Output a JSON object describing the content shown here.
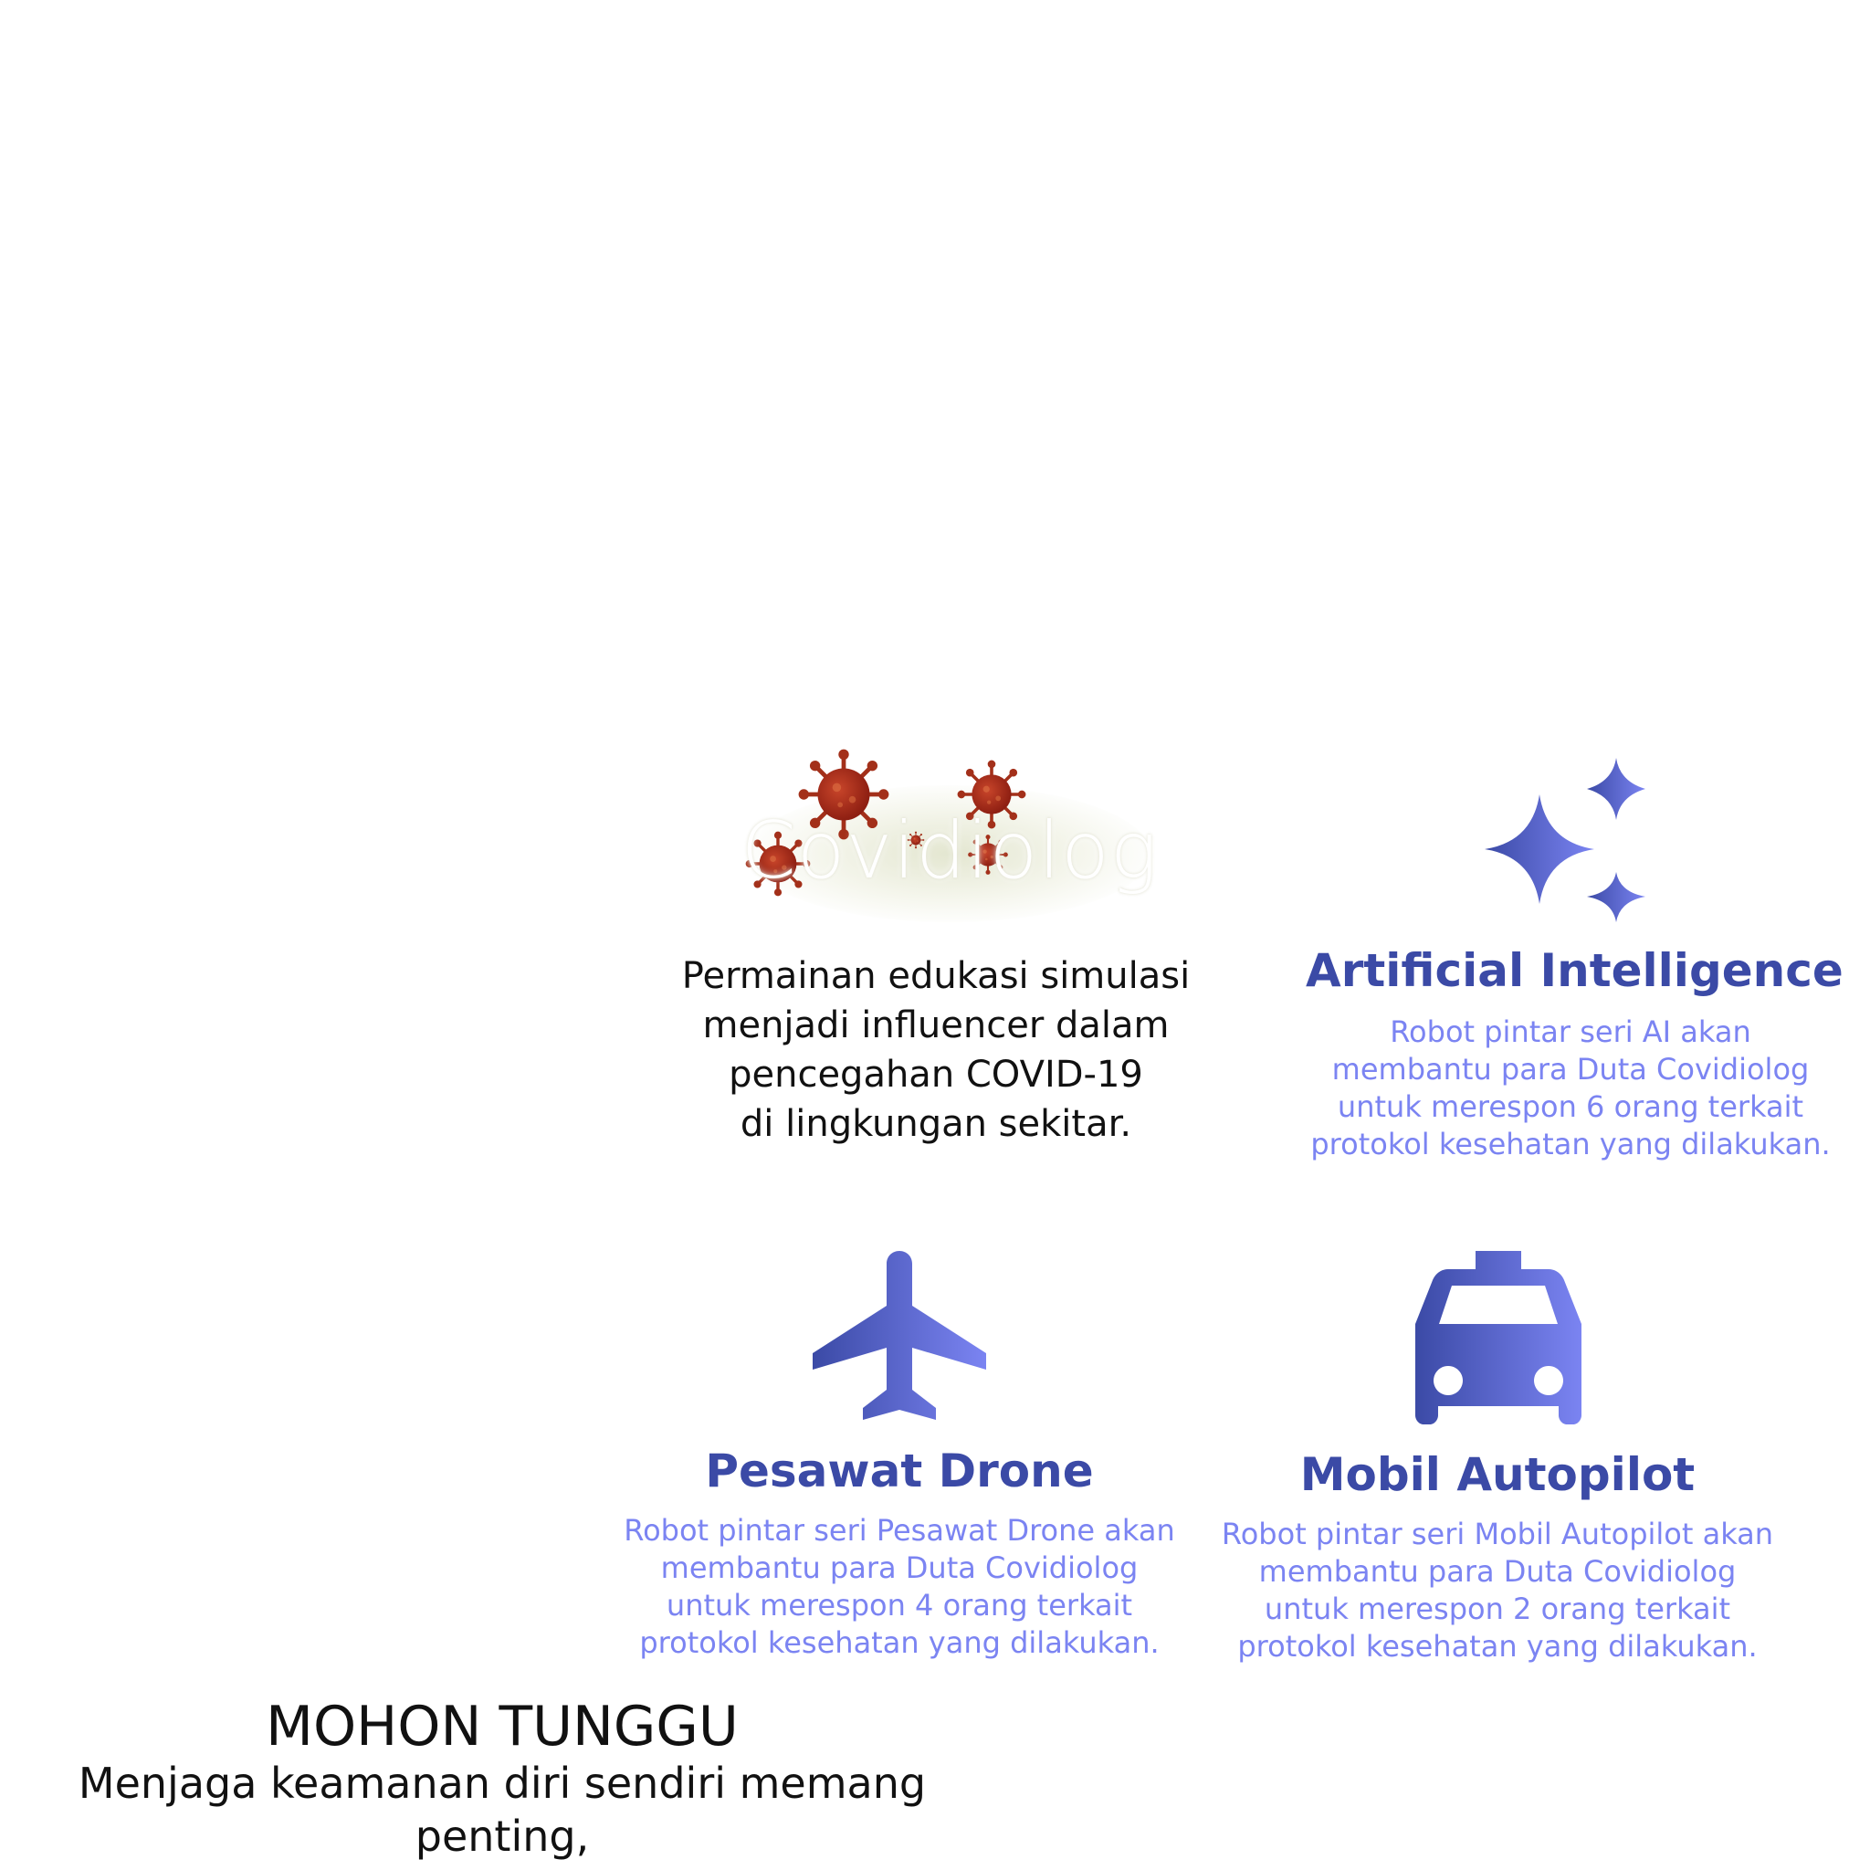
{
  "logo": {
    "text": "Covidiolog",
    "icon": "virus-icon",
    "color": "#b23a1c"
  },
  "tagline": "Permainan edukasi simulasi\nmenjadi influencer dalam\npencegahan COVID-19\ndi lingkungan sekitar.",
  "features": {
    "ai": {
      "icon": "sparkles-icon",
      "title": "Artificial Intelligence",
      "description": "Robot pintar seri AI akan\nmembantu para Duta Covidiolog\nuntuk merespon 6 orang terkait\nprotokol kesehatan yang dilakukan."
    },
    "drone": {
      "icon": "airplane-icon",
      "title": "Pesawat Drone",
      "description": "Robot pintar seri Pesawat Drone akan\nmembantu para Duta Covidiolog\nuntuk merespon 4 orang terkait\nprotokol kesehatan yang dilakukan."
    },
    "car": {
      "icon": "taxi-icon",
      "title": "Mobil Autopilot",
      "description": "Robot pintar seri Mobil Autopilot akan\nmembantu para Duta Covidiolog\nuntuk merespon 2 orang terkait\nprotokol kesehatan yang dilakukan."
    }
  },
  "loading": {
    "title": "MOHON TUNGGU",
    "message": "Menjaga keamanan diri sendiri memang penting,\nmenjaga keamanan orang lain yang utama."
  },
  "colors": {
    "title": "#3b4aa6",
    "description": "#7b84f2",
    "icon_gradient_start": "#3b4aa6",
    "icon_gradient_end": "#7b84f2"
  }
}
